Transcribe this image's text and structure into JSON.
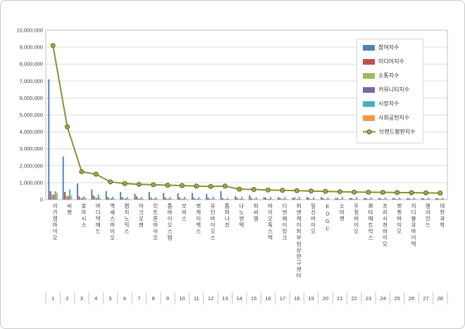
{
  "chart_data": {
    "type": "bar",
    "subtype": "grouped bars with overlaid line (brand reputation index ranking)",
    "title": "",
    "xlabel": "",
    "ylabel": "",
    "ylim": [
      0,
      10000000
    ],
    "ytick_step": 1000000,
    "grid": true,
    "legend_position": "inside-top-right",
    "y_tick_labels_top_to_bottom": [
      "10,000,000",
      "9,000,000",
      "8,000,000",
      "7,000,000",
      "6,000,000",
      "5,000,000",
      "4,000,000",
      "3,000,000",
      "2,000,000",
      "1,000,000",
      "0"
    ],
    "categories": [
      "리가켐바이오",
      "씨젠",
      "휴마시스",
      "바디텍메드",
      "엑세스바이오",
      "랩지노믹스",
      "마크로젠",
      "인트론바이오",
      "톱바이오스텝",
      "모비스",
      "엔케이맥스",
      "유인바이오스",
      "톱파나진",
      "나노엔텍",
      "피씨엘",
      "바이오톡스텍",
      "디엔에이링크",
      "피엔케이피부임상연구센타",
      "일신바이오",
      "EDGC",
      "소마젠",
      "우정바이오",
      "퀀타매트릭스",
      "프리시젼바이오",
      "엔젠바이오",
      "지디블유바이텍",
      "엘라인드",
      "대한과학"
    ],
    "rank_labels": [
      "1",
      "2",
      "3",
      "4",
      "5",
      "6",
      "7",
      "8",
      "9",
      "10",
      "11",
      "12",
      "13",
      "14",
      "15",
      "16",
      "17",
      "18",
      "19",
      "20",
      "21",
      "22",
      "23",
      "24",
      "25",
      "26",
      "27",
      "28"
    ],
    "series": [
      {
        "name": "참여지수",
        "chart": "bar",
        "color": "#4F81BD",
        "values": [
          7100000,
          2550000,
          950000,
          600000,
          500000,
          450000,
          350000,
          450000,
          400000,
          380000,
          400000,
          350000,
          500000,
          200000,
          250000,
          150000,
          150000,
          100000,
          150000,
          150000,
          100000,
          100000,
          100000,
          100000,
          100000,
          90000,
          90000,
          80000
        ]
      },
      {
        "name": "미디어지수",
        "chart": "bar",
        "color": "#C0504D",
        "values": [
          500000,
          450000,
          200000,
          250000,
          150000,
          150000,
          200000,
          120000,
          130000,
          130000,
          110000,
          120000,
          90000,
          120000,
          100000,
          120000,
          110000,
          130000,
          100000,
          90000,
          100000,
          90000,
          90000,
          80000,
          80000,
          80000,
          80000,
          80000
        ]
      },
      {
        "name": "소통지수",
        "chart": "bar",
        "color": "#9BBB59",
        "values": [
          300000,
          250000,
          100000,
          150000,
          80000,
          70000,
          80000,
          60000,
          60000,
          60000,
          50000,
          50000,
          40000,
          50000,
          40000,
          50000,
          50000,
          60000,
          40000,
          40000,
          40000,
          40000,
          40000,
          40000,
          40000,
          40000,
          40000,
          40000
        ]
      },
      {
        "name": "커뮤니티지수",
        "chart": "bar",
        "color": "#8064A2",
        "values": [
          300000,
          200000,
          100000,
          100000,
          70000,
          60000,
          60000,
          50000,
          50000,
          50000,
          40000,
          40000,
          30000,
          40000,
          30000,
          40000,
          40000,
          40000,
          30000,
          30000,
          30000,
          30000,
          30000,
          30000,
          30000,
          30000,
          30000,
          30000
        ]
      },
      {
        "name": "시장지수",
        "chart": "bar",
        "color": "#4BACC6",
        "values": [
          500000,
          600000,
          200000,
          300000,
          180000,
          160000,
          150000,
          150000,
          160000,
          160000,
          150000,
          170000,
          100000,
          160000,
          140000,
          170000,
          160000,
          160000,
          150000,
          140000,
          160000,
          150000,
          140000,
          140000,
          130000,
          130000,
          120000,
          120000
        ]
      },
      {
        "name": "사회공헌지수",
        "chart": "bar",
        "color": "#F79646",
        "values": [
          400000,
          250000,
          100000,
          100000,
          70000,
          60000,
          60000,
          50000,
          50000,
          50000,
          50000,
          50000,
          40000,
          50000,
          40000,
          40000,
          40000,
          40000,
          40000,
          40000,
          40000,
          40000,
          40000,
          40000,
          40000,
          40000,
          40000,
          40000
        ]
      },
      {
        "name": "브랜드평판지수",
        "chart": "line",
        "color": "#8E8E38",
        "marker_fill": "#A8A848",
        "marker_stroke": "#5E5E1E",
        "values": [
          9100000,
          4300000,
          1650000,
          1500000,
          1050000,
          950000,
          900000,
          880000,
          850000,
          830000,
          800000,
          780000,
          800000,
          620000,
          600000,
          570000,
          550000,
          530000,
          510000,
          490000,
          470000,
          450000,
          440000,
          430000,
          420000,
          410000,
          400000,
          390000
        ]
      }
    ]
  }
}
